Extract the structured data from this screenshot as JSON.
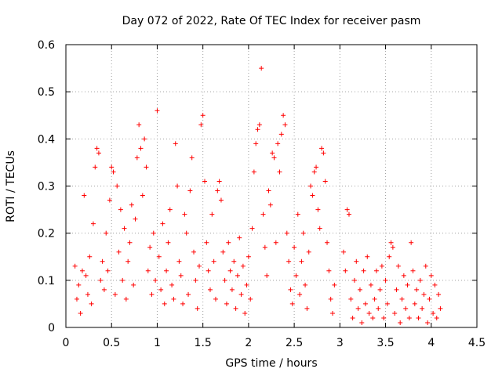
{
  "chart_data": {
    "type": "scatter",
    "title": "Day 072 of 2022, Rate Of TEC Index for receiver pasm",
    "xlabel": "GPS time / hours",
    "ylabel": "ROTI / TECUs",
    "xlim": [
      0,
      4.5
    ],
    "ylim": [
      0,
      0.6
    ],
    "xticks": [
      0,
      0.5,
      1,
      1.5,
      2,
      2.5,
      3,
      3.5,
      4,
      4.5
    ],
    "xtick_labels": [
      "0",
      "0.5",
      "1",
      "1.5",
      "2",
      "2.5",
      "3",
      "3.5",
      "4",
      "4.5"
    ],
    "yticks": [
      0,
      0.1,
      0.2,
      0.3,
      0.4,
      0.5,
      0.6
    ],
    "ytick_labels": [
      "0",
      "0.1",
      "0.2",
      "0.3",
      "0.4",
      "0.5",
      "0.6"
    ],
    "grid": true,
    "marker": "+",
    "colors": {
      "series": "#ff0000",
      "grid": "#a0a0a0",
      "axis": "#000000"
    },
    "series": [
      {
        "points": [
          [
            0.1,
            0.13
          ],
          [
            0.12,
            0.06
          ],
          [
            0.14,
            0.09
          ],
          [
            0.16,
            0.03
          ],
          [
            0.18,
            0.12
          ],
          [
            0.2,
            0.28
          ],
          [
            0.22,
            0.11
          ],
          [
            0.24,
            0.07
          ],
          [
            0.26,
            0.15
          ],
          [
            0.28,
            0.05
          ],
          [
            0.3,
            0.22
          ],
          [
            0.32,
            0.34
          ],
          [
            0.34,
            0.38
          ],
          [
            0.36,
            0.37
          ],
          [
            0.38,
            0.1
          ],
          [
            0.4,
            0.14
          ],
          [
            0.42,
            0.08
          ],
          [
            0.44,
            0.2
          ],
          [
            0.46,
            0.12
          ],
          [
            0.48,
            0.27
          ],
          [
            0.5,
            0.34
          ],
          [
            0.52,
            0.33
          ],
          [
            0.54,
            0.07
          ],
          [
            0.56,
            0.3
          ],
          [
            0.58,
            0.16
          ],
          [
            0.6,
            0.25
          ],
          [
            0.62,
            0.1
          ],
          [
            0.64,
            0.21
          ],
          [
            0.66,
            0.06
          ],
          [
            0.68,
            0.14
          ],
          [
            0.7,
            0.18
          ],
          [
            0.72,
            0.26
          ],
          [
            0.74,
            0.09
          ],
          [
            0.76,
            0.23
          ],
          [
            0.78,
            0.36
          ],
          [
            0.8,
            0.43
          ],
          [
            0.82,
            0.38
          ],
          [
            0.84,
            0.28
          ],
          [
            0.86,
            0.4
          ],
          [
            0.88,
            0.34
          ],
          [
            0.9,
            0.12
          ],
          [
            0.92,
            0.17
          ],
          [
            0.94,
            0.07
          ],
          [
            0.96,
            0.2
          ],
          [
            0.98,
            0.1
          ],
          [
            1.0,
            0.46
          ],
          [
            1.02,
            0.15
          ],
          [
            1.04,
            0.08
          ],
          [
            1.06,
            0.22
          ],
          [
            1.08,
            0.05
          ],
          [
            1.1,
            0.12
          ],
          [
            1.12,
            0.18
          ],
          [
            1.14,
            0.25
          ],
          [
            1.16,
            0.09
          ],
          [
            1.18,
            0.06
          ],
          [
            1.2,
            0.39
          ],
          [
            1.22,
            0.3
          ],
          [
            1.24,
            0.14
          ],
          [
            1.26,
            0.11
          ],
          [
            1.28,
            0.05
          ],
          [
            1.3,
            0.24
          ],
          [
            1.32,
            0.2
          ],
          [
            1.34,
            0.07
          ],
          [
            1.36,
            0.29
          ],
          [
            1.38,
            0.36
          ],
          [
            1.4,
            0.16
          ],
          [
            1.42,
            0.1
          ],
          [
            1.44,
            0.04
          ],
          [
            1.46,
            0.13
          ],
          [
            1.48,
            0.43
          ],
          [
            1.5,
            0.45
          ],
          [
            1.52,
            0.31
          ],
          [
            1.54,
            0.18
          ],
          [
            1.56,
            0.12
          ],
          [
            1.58,
            0.08
          ],
          [
            1.6,
            0.24
          ],
          [
            1.62,
            0.14
          ],
          [
            1.64,
            0.06
          ],
          [
            1.66,
            0.29
          ],
          [
            1.68,
            0.31
          ],
          [
            1.7,
            0.27
          ],
          [
            1.72,
            0.16
          ],
          [
            1.74,
            0.1
          ],
          [
            1.76,
            0.05
          ],
          [
            1.78,
            0.18
          ],
          [
            1.8,
            0.12
          ],
          [
            1.82,
            0.08
          ],
          [
            1.84,
            0.14
          ],
          [
            1.86,
            0.04
          ],
          [
            1.88,
            0.11
          ],
          [
            1.9,
            0.19
          ],
          [
            1.92,
            0.07
          ],
          [
            1.94,
            0.13
          ],
          [
            1.96,
            0.03
          ],
          [
            1.98,
            0.09
          ],
          [
            2.0,
            0.15
          ],
          [
            2.02,
            0.06
          ],
          [
            2.04,
            0.21
          ],
          [
            2.06,
            0.33
          ],
          [
            2.08,
            0.39
          ],
          [
            2.1,
            0.42
          ],
          [
            2.12,
            0.43
          ],
          [
            2.14,
            0.55
          ],
          [
            2.16,
            0.24
          ],
          [
            2.18,
            0.17
          ],
          [
            2.2,
            0.11
          ],
          [
            2.22,
            0.29
          ],
          [
            2.24,
            0.26
          ],
          [
            2.26,
            0.37
          ],
          [
            2.28,
            0.36
          ],
          [
            2.3,
            0.18
          ],
          [
            2.32,
            0.39
          ],
          [
            2.34,
            0.33
          ],
          [
            2.36,
            0.41
          ],
          [
            2.38,
            0.45
          ],
          [
            2.4,
            0.43
          ],
          [
            2.42,
            0.2
          ],
          [
            2.44,
            0.14
          ],
          [
            2.46,
            0.08
          ],
          [
            2.48,
            0.05
          ],
          [
            2.5,
            0.17
          ],
          [
            2.52,
            0.11
          ],
          [
            2.54,
            0.24
          ],
          [
            2.56,
            0.07
          ],
          [
            2.58,
            0.14
          ],
          [
            2.6,
            0.2
          ],
          [
            2.62,
            0.09
          ],
          [
            2.64,
            0.04
          ],
          [
            2.66,
            0.16
          ],
          [
            2.68,
            0.3
          ],
          [
            2.7,
            0.28
          ],
          [
            2.72,
            0.33
          ],
          [
            2.74,
            0.34
          ],
          [
            2.76,
            0.25
          ],
          [
            2.78,
            0.21
          ],
          [
            2.8,
            0.38
          ],
          [
            2.82,
            0.37
          ],
          [
            2.84,
            0.31
          ],
          [
            2.86,
            0.18
          ],
          [
            2.88,
            0.12
          ],
          [
            2.9,
            0.06
          ],
          [
            2.92,
            0.03
          ],
          [
            2.94,
            0.09
          ],
          [
            3.04,
            0.16
          ],
          [
            3.06,
            0.12
          ],
          [
            3.08,
            0.25
          ],
          [
            3.1,
            0.24
          ],
          [
            3.12,
            0.06
          ],
          [
            3.14,
            0.02
          ],
          [
            3.16,
            0.1
          ],
          [
            3.18,
            0.14
          ],
          [
            3.2,
            0.04
          ],
          [
            3.22,
            0.08
          ],
          [
            3.24,
            0.01
          ],
          [
            3.26,
            0.12
          ],
          [
            3.28,
            0.05
          ],
          [
            3.3,
            0.15
          ],
          [
            3.32,
            0.03
          ],
          [
            3.34,
            0.09
          ],
          [
            3.36,
            0.02
          ],
          [
            3.38,
            0.06
          ],
          [
            3.4,
            0.12
          ],
          [
            3.42,
            0.04
          ],
          [
            3.44,
            0.08
          ],
          [
            3.46,
            0.13
          ],
          [
            3.48,
            0.02
          ],
          [
            3.5,
            0.1
          ],
          [
            3.52,
            0.05
          ],
          [
            3.54,
            0.15
          ],
          [
            3.56,
            0.18
          ],
          [
            3.58,
            0.17
          ],
          [
            3.6,
            0.03
          ],
          [
            3.62,
            0.08
          ],
          [
            3.64,
            0.13
          ],
          [
            3.66,
            0.01
          ],
          [
            3.68,
            0.06
          ],
          [
            3.7,
            0.11
          ],
          [
            3.72,
            0.04
          ],
          [
            3.74,
            0.09
          ],
          [
            3.76,
            0.02
          ],
          [
            3.78,
            0.18
          ],
          [
            3.8,
            0.12
          ],
          [
            3.82,
            0.05
          ],
          [
            3.84,
            0.08
          ],
          [
            3.86,
            0.02
          ],
          [
            3.88,
            0.1
          ],
          [
            3.9,
            0.04
          ],
          [
            3.92,
            0.07
          ],
          [
            3.94,
            0.13
          ],
          [
            3.96,
            0.01
          ],
          [
            3.98,
            0.06
          ],
          [
            4.0,
            0.11
          ],
          [
            4.02,
            0.03
          ],
          [
            4.04,
            0.09
          ],
          [
            4.06,
            0.02
          ],
          [
            4.08,
            0.07
          ],
          [
            4.1,
            0.04
          ]
        ]
      }
    ]
  }
}
